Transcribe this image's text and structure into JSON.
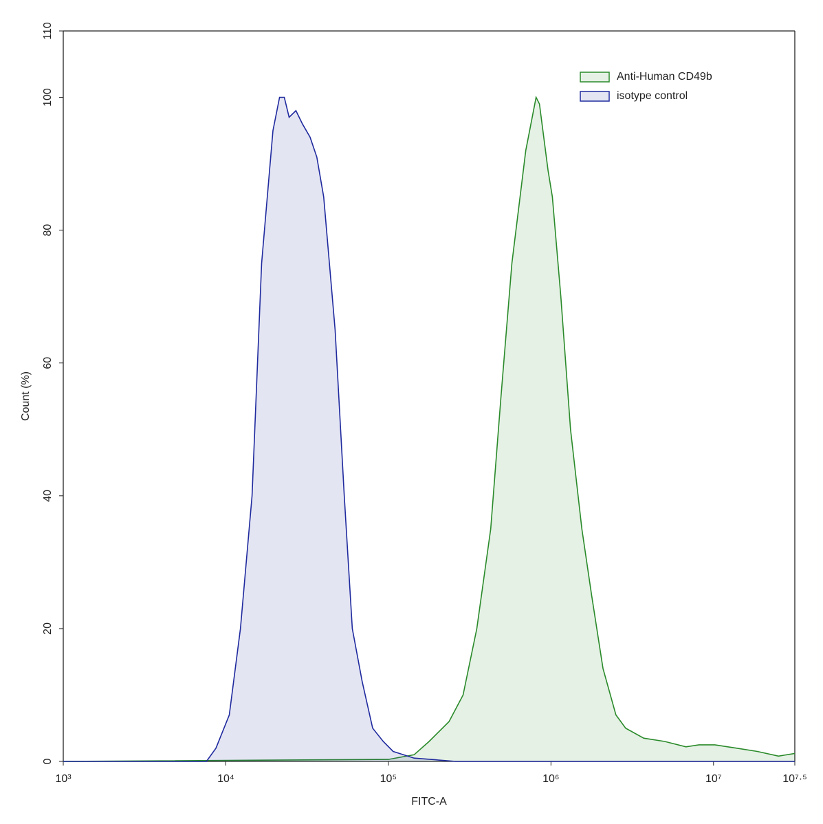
{
  "chart_data": {
    "type": "area",
    "x_label": "FITC-A",
    "y_label": "Count  (%)",
    "log_x": true,
    "xlim": [
      1000,
      31622776.6
    ],
    "ylim": [
      0,
      110
    ],
    "xticks": [
      {
        "value": 1000,
        "label": "10³"
      },
      {
        "value": 10000,
        "label": "10⁴"
      },
      {
        "value": 100000,
        "label": "10⁵"
      },
      {
        "value": 1000000,
        "label": "10⁶"
      },
      {
        "value": 10000000,
        "label": "10⁷"
      },
      {
        "value": 31622776.6,
        "label": "10⁷·⁵"
      }
    ],
    "yticks": [
      0,
      20,
      40,
      60,
      80,
      100,
      110
    ],
    "legend": "upper right",
    "series": [
      {
        "name": "Anti-Human CD49b",
        "color": "#2a8a2a",
        "x": [
          1000,
          100000,
          144000,
          178000,
          236000,
          288000,
          350000,
          426000,
          493000,
          575000,
          700000,
          810000,
          850000,
          960000,
          1020000,
          1150000,
          1320000,
          1550000,
          1780000,
          2090000,
          2510000,
          2880000,
          3720000,
          5010000,
          6760000,
          8130000,
          10200000,
          13800000,
          18600000,
          25100000,
          31622776.6
        ],
        "values": [
          0,
          0.3,
          1,
          3,
          6,
          10,
          20,
          35,
          55,
          75,
          92,
          100,
          99,
          89,
          85,
          70,
          50,
          35,
          25,
          14,
          7,
          5,
          3.5,
          3,
          2.2,
          2.5,
          2.5,
          2,
          1.5,
          0.8,
          1.2
        ]
      },
      {
        "name": "isotype control",
        "color": "#1f2a9e",
        "x": [
          1000,
          7600,
          8700,
          10500,
          12300,
          14500,
          16600,
          19500,
          21400,
          22900,
          24500,
          27000,
          29600,
          33000,
          36300,
          40000,
          47000,
          53500,
          60000,
          69000,
          80000,
          93000,
          107000,
          144000,
          260000,
          31622776.6
        ],
        "values": [
          0,
          0,
          2,
          7,
          20,
          40,
          75,
          95,
          100,
          100,
          97,
          98,
          96,
          94,
          91,
          85,
          65,
          40,
          20,
          12,
          5,
          3,
          1.5,
          0.5,
          0,
          0
        ]
      }
    ]
  }
}
